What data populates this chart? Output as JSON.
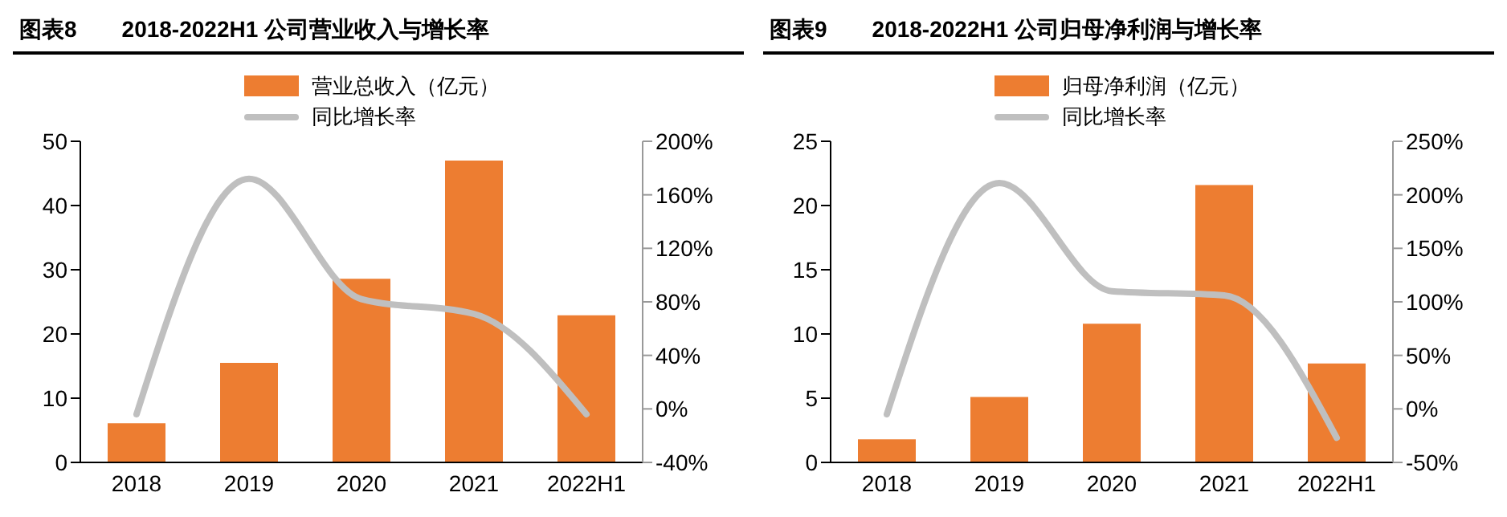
{
  "chart_data": [
    {
      "type": "bar",
      "title": "图表8　　2018-2022H1 公司营业收入与增长率",
      "categories": [
        "2018",
        "2019",
        "2020",
        "2021",
        "2022H1"
      ],
      "series": [
        {
          "name": "营业总收入（亿元）",
          "color": "#ed7d31",
          "values": [
            6.1,
            15.5,
            28.6,
            47.0,
            22.9
          ]
        },
        {
          "name": "同比增长率",
          "type": "line",
          "axis": "y2",
          "color": "#bfbfbf",
          "values": [
            -4,
            172,
            82,
            71,
            -4
          ]
        }
      ],
      "ylim": [
        0,
        50
      ],
      "yticks": [
        0,
        10,
        20,
        30,
        40,
        50
      ],
      "y2lim": [
        -40,
        200
      ],
      "y2ticks": [
        {
          "value": -40,
          "label": "-40%"
        },
        {
          "value": 0,
          "label": "0%"
        },
        {
          "value": 40,
          "label": "40%"
        },
        {
          "value": 80,
          "label": "80%"
        },
        {
          "value": 120,
          "label": "120%"
        },
        {
          "value": 160,
          "label": "160%"
        },
        {
          "value": 200,
          "label": "200%"
        }
      ],
      "grid": false,
      "legend": "top",
      "marker": "none",
      "line_style": "solid"
    },
    {
      "type": "bar",
      "title": "图表9　　2018-2022H1 公司归母净利润与增长率",
      "categories": [
        "2018",
        "2019",
        "2020",
        "2021",
        "2022H1"
      ],
      "series": [
        {
          "name": "归母净利润（亿元）",
          "color": "#ed7d31",
          "values": [
            1.8,
            5.1,
            10.8,
            21.6,
            7.7
          ]
        },
        {
          "name": "同比增长率",
          "type": "line",
          "axis": "y2",
          "color": "#bfbfbf",
          "values": [
            -5,
            211,
            110,
            106,
            -27
          ]
        }
      ],
      "ylim": [
        0,
        25
      ],
      "yticks": [
        0,
        5,
        10,
        15,
        20,
        25
      ],
      "y2lim": [
        -50,
        250
      ],
      "y2ticks": [
        {
          "value": -50,
          "label": "-50%"
        },
        {
          "value": 0,
          "label": "0%"
        },
        {
          "value": 50,
          "label": "50%"
        },
        {
          "value": 100,
          "label": "100%"
        },
        {
          "value": 150,
          "label": "150%"
        },
        {
          "value": 200,
          "label": "200%"
        },
        {
          "value": 250,
          "label": "250%"
        }
      ],
      "grid": false,
      "legend": "top",
      "marker": "none",
      "line_style": "solid"
    }
  ]
}
